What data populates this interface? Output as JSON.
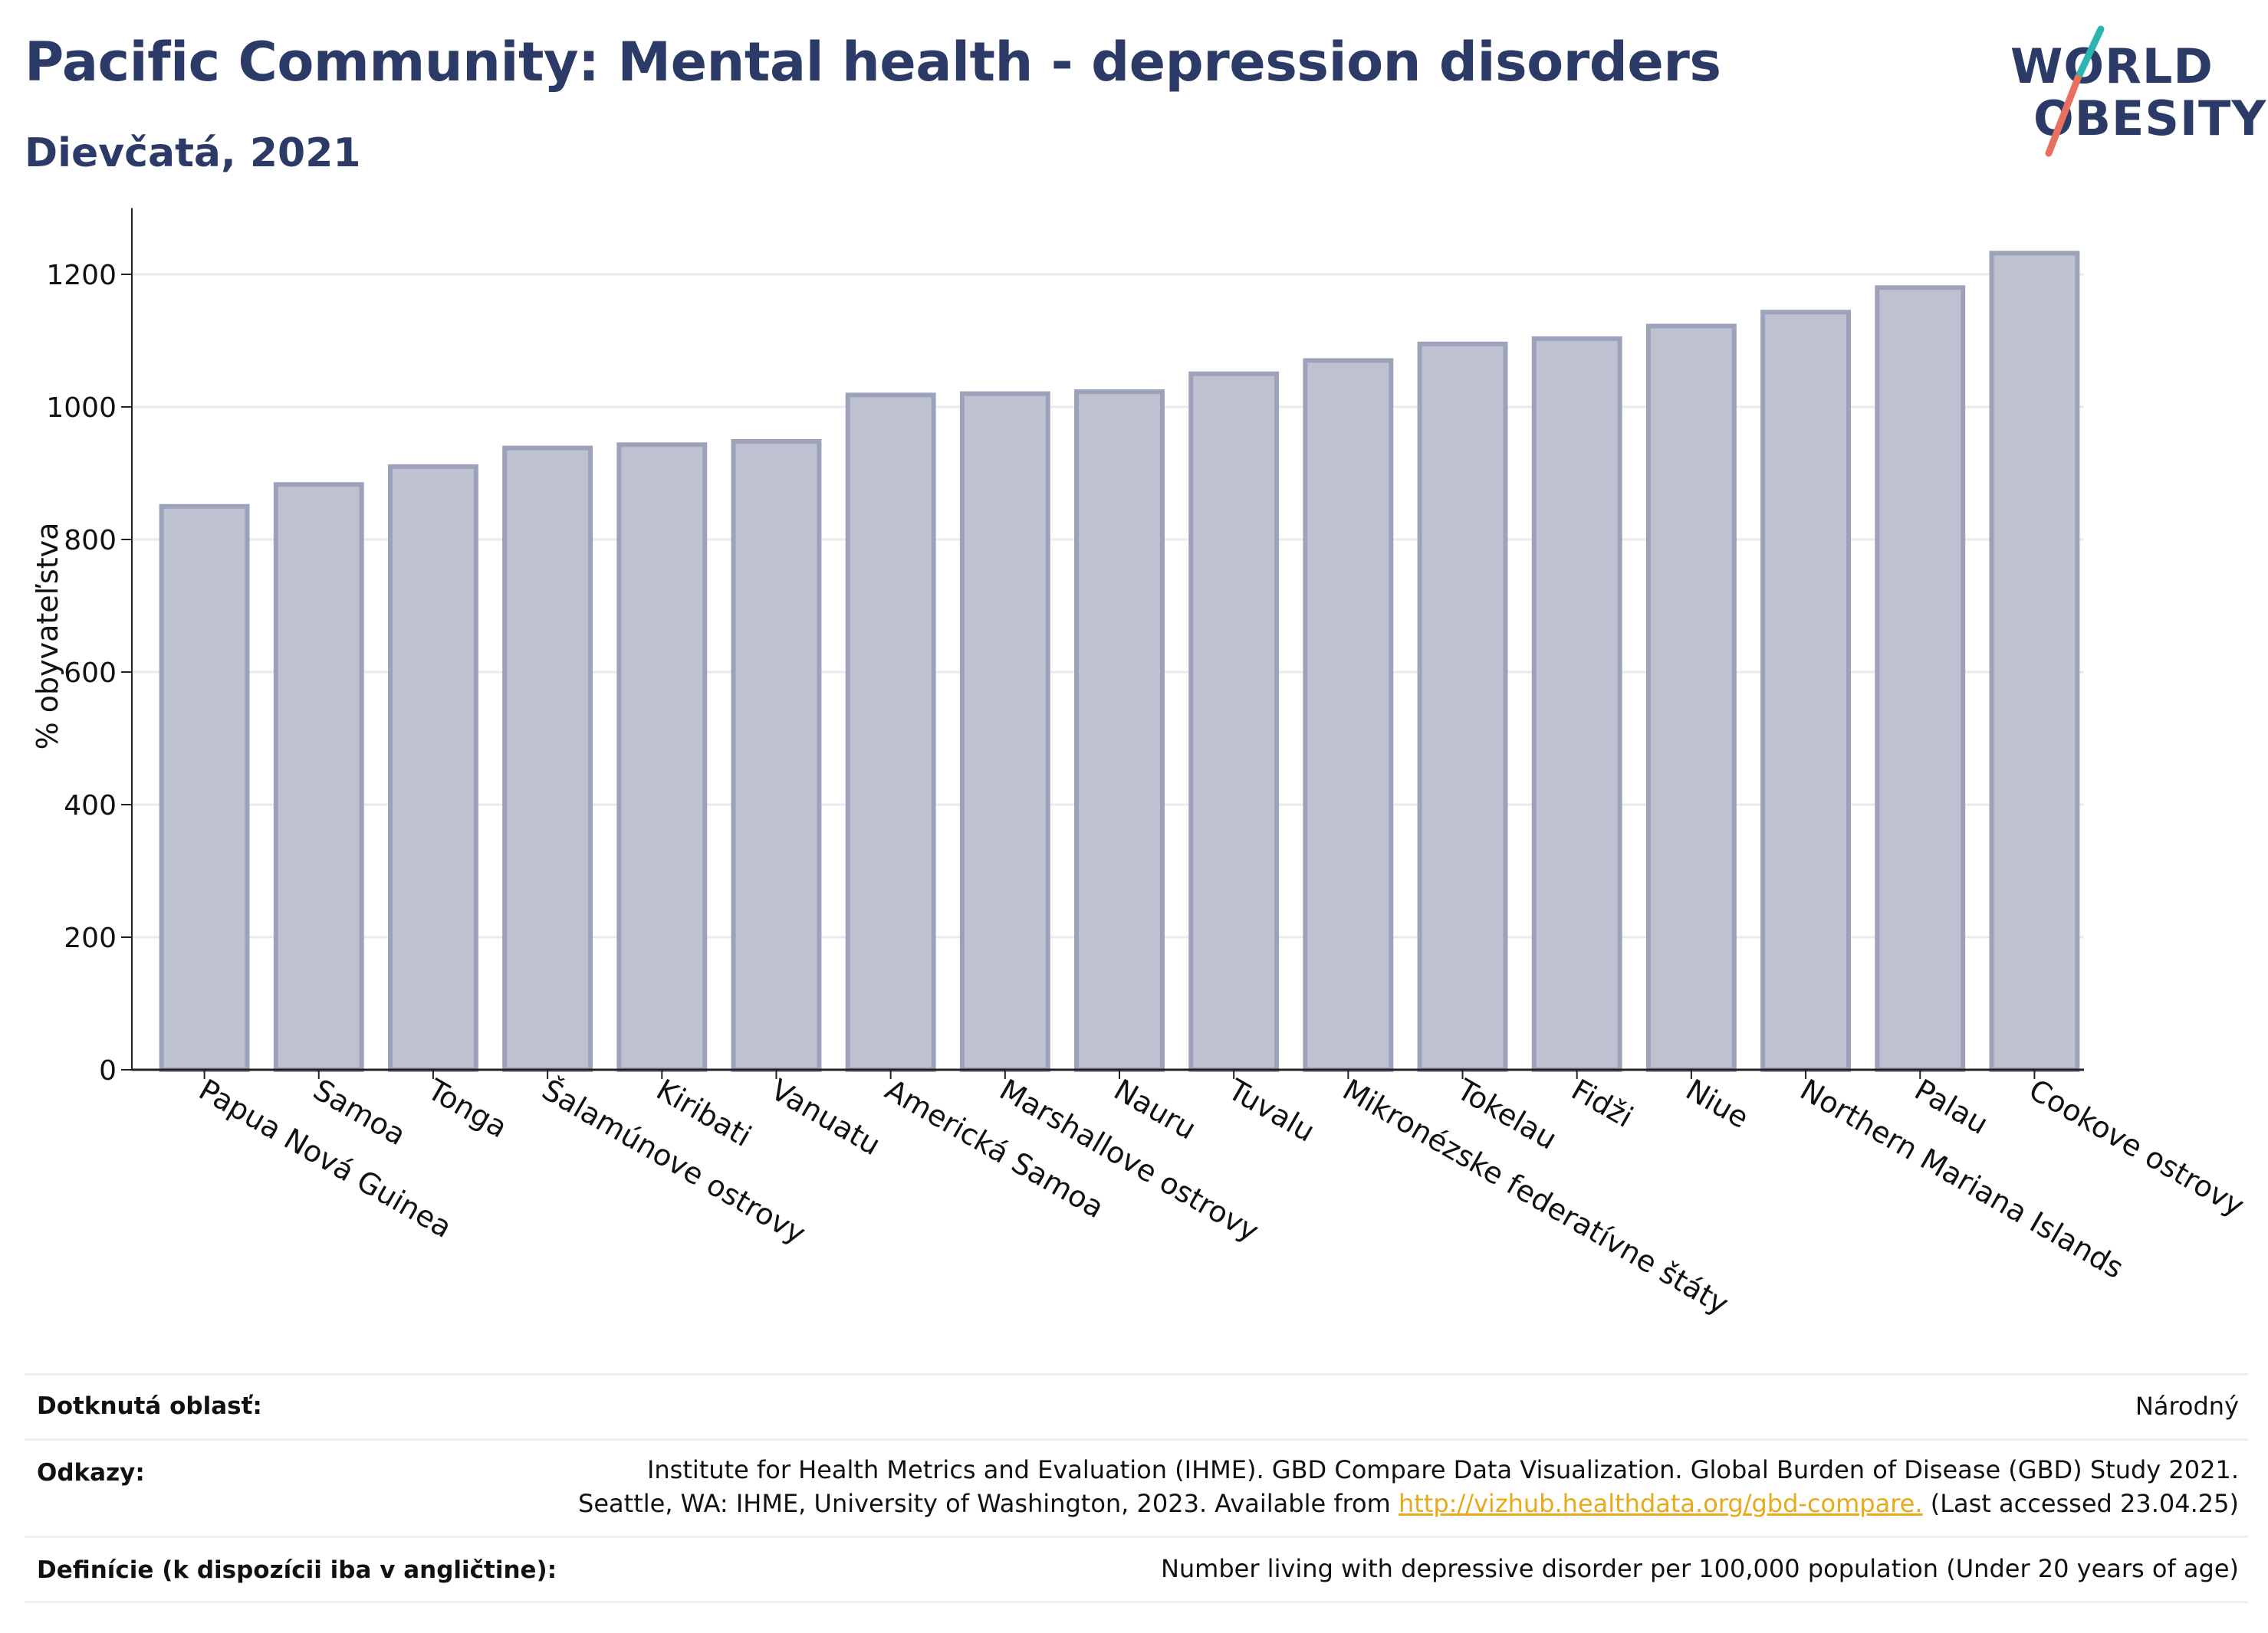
{
  "title": "Pacific Community: Mental health - depression disorders",
  "subtitle": "Dievčatá, 2021",
  "logo": {
    "line1": "WORLD",
    "line2": "OBESITY",
    "colors": {
      "text": "#2b3a67",
      "teal": "#2bb4b0",
      "coral": "#e8705e"
    }
  },
  "colors": {
    "bar_fill": "#bec2d0",
    "bar_stroke": "#9ca2b9",
    "grid": "#e9ebef",
    "axis": "#222222",
    "title": "#2b3a67",
    "link": "#e8a91b"
  },
  "chart_data": {
    "type": "bar",
    "ylabel": "% obyvateľstva",
    "xlabel": "",
    "ylim": [
      0,
      1300
    ],
    "yticks": [
      0,
      200,
      400,
      600,
      800,
      1000,
      1200
    ],
    "grid": true,
    "categories": [
      "Papua Nová Guinea",
      "Samoa",
      "Tonga",
      "Šalamúnove ostrovy",
      "Kiribati",
      "Vanuatu",
      "Americká Samoa",
      "Marshallove ostrovy",
      "Nauru",
      "Tuvalu",
      "Mikronézske federatívne štáty",
      "Tokelau",
      "Fidži",
      "Niue",
      "Northern Mariana Islands",
      "Palau",
      "Cookove ostrovy"
    ],
    "values": [
      850,
      883,
      910,
      938,
      943,
      948,
      1018,
      1020,
      1023,
      1050,
      1070,
      1095,
      1103,
      1122,
      1143,
      1180,
      1232
    ]
  },
  "footer": {
    "area_label": "Dotknutá oblasť:",
    "area_value": "Národný",
    "refs_label": "Odkazy:",
    "refs_line1": "Institute for Health Metrics and Evaluation (IHME). GBD Compare Data Visualization. Global Burden of Disease (GBD) Study 2021.",
    "refs_line2_pre": "Seattle, WA: IHME, University of Washington, 2023. Available from ",
    "refs_link": "http://vizhub.healthdata.org/gbd-compare.",
    "refs_line2_post": " (Last accessed 23.04.25)",
    "def_label": "Definície (k dispozícii iba v angličtine):",
    "def_value": "Number living with depressive disorder per 100,000 population (Under 20 years of age)"
  }
}
